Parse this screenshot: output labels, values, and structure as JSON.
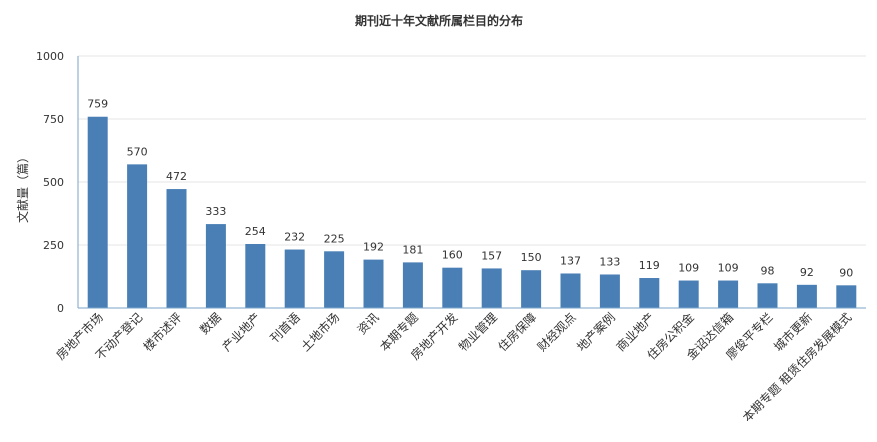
{
  "chart_data": {
    "type": "bar",
    "title": "期刊近十年文献所属栏目的分布",
    "ylabel": "文献量（篇）",
    "xlabel": "",
    "ylim": [
      0,
      1000
    ],
    "yticks": [
      0,
      250,
      500,
      750,
      1000
    ],
    "grid": true,
    "bar_color": "#4a7fb5",
    "categories": [
      "房地产市场",
      "不动产登记",
      "楼市述评",
      "数据",
      "产业地产",
      "刊首语",
      "土地市场",
      "资讯",
      "本期专题",
      "房地产开发",
      "物业管理",
      "住房保障",
      "财经观点",
      "地产案例",
      "商业地产",
      "住房公积金",
      "金诏达信箱",
      "廖俊平专栏",
      "城市更新",
      "本期专题 租赁住房发展模式"
    ],
    "values": [
      759,
      570,
      472,
      333,
      254,
      232,
      225,
      192,
      181,
      160,
      157,
      150,
      137,
      133,
      119,
      109,
      109,
      98,
      92,
      90
    ]
  }
}
